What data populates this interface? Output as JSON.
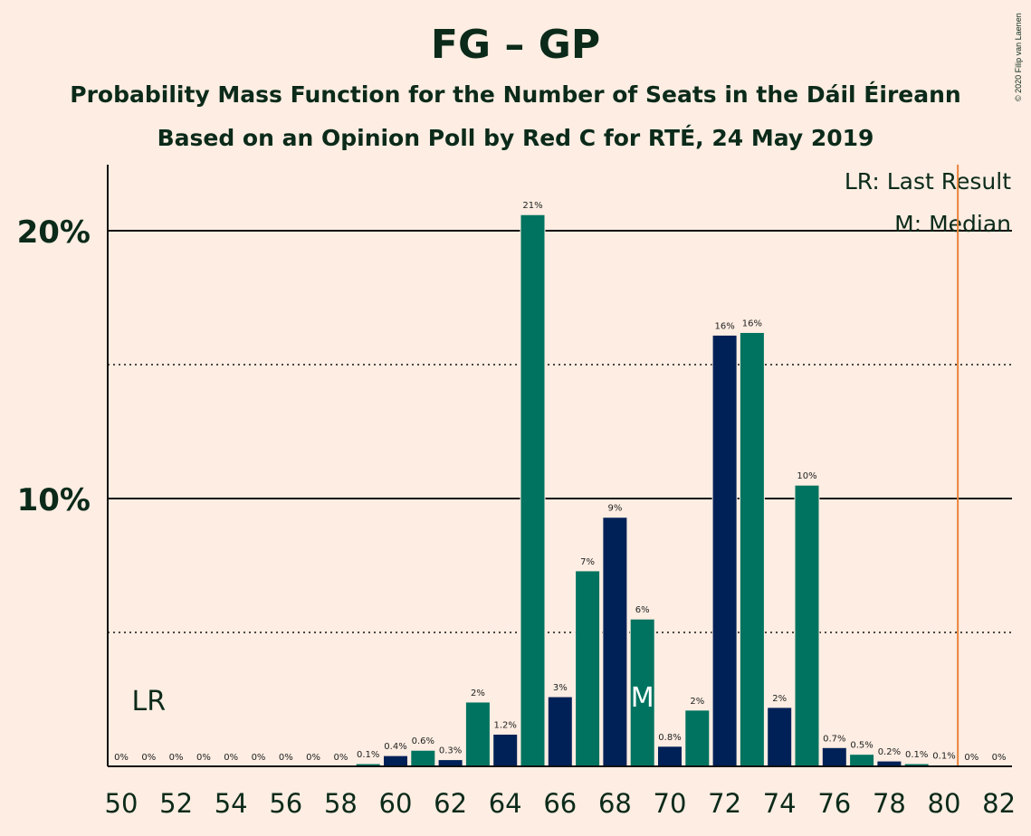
{
  "title": "FG – GP",
  "subtitle": "Probability Mass Function for the Number of Seats in the Dáil Éireann",
  "subtitle2": "Based on an Opinion Poll by Red C for RTÉ, 24 May 2019",
  "credit": "© 2020 Filip van Laenen",
  "legend": {
    "last_result": "LR: Last Result",
    "median": "M: Median"
  },
  "colors": {
    "background": "#FDEDE2",
    "bar_dark": "#002157",
    "bar_green": "#007360",
    "majority_line": "#E8833A"
  },
  "chart_data": {
    "type": "bar",
    "xlim": [
      50,
      82
    ],
    "ylim": [
      0,
      22.5
    ],
    "y_ticks": [
      {
        "value": 10,
        "label": "10%"
      },
      {
        "value": 20,
        "label": "20%"
      }
    ],
    "y_dotted": [
      5,
      15
    ],
    "x_ticks": [
      50,
      52,
      54,
      56,
      58,
      60,
      62,
      64,
      66,
      68,
      70,
      72,
      74,
      76,
      78,
      80,
      82
    ],
    "bars": [
      {
        "seats": 50,
        "value": 0,
        "label": "0%"
      },
      {
        "seats": 51,
        "value": 0,
        "label": "0%"
      },
      {
        "seats": 52,
        "value": 0,
        "label": "0%"
      },
      {
        "seats": 53,
        "value": 0,
        "label": "0%"
      },
      {
        "seats": 54,
        "value": 0,
        "label": "0%"
      },
      {
        "seats": 55,
        "value": 0,
        "label": "0%"
      },
      {
        "seats": 56,
        "value": 0,
        "label": "0%"
      },
      {
        "seats": 57,
        "value": 0,
        "label": "0%"
      },
      {
        "seats": 58,
        "value": 0,
        "label": "0%"
      },
      {
        "seats": 59,
        "value": 0.1,
        "label": "0.1%"
      },
      {
        "seats": 60,
        "value": 0.4,
        "label": "0.4%"
      },
      {
        "seats": 61,
        "value": 0.6,
        "label": "0.6%"
      },
      {
        "seats": 62,
        "value": 0.25,
        "label": "0.3%"
      },
      {
        "seats": 63,
        "value": 2.4,
        "label": "2%"
      },
      {
        "seats": 64,
        "value": 1.2,
        "label": "1.2%"
      },
      {
        "seats": 65,
        "value": 20.6,
        "label": "21%"
      },
      {
        "seats": 66,
        "value": 2.6,
        "label": "3%"
      },
      {
        "seats": 67,
        "value": 7.3,
        "label": "7%"
      },
      {
        "seats": 68,
        "value": 9.3,
        "label": "9%"
      },
      {
        "seats": 69,
        "value": 5.5,
        "label": "6%"
      },
      {
        "seats": 70,
        "value": 0.75,
        "label": "0.8%"
      },
      {
        "seats": 71,
        "value": 2.1,
        "label": "2%"
      },
      {
        "seats": 72,
        "value": 16.1,
        "label": "16%"
      },
      {
        "seats": 73,
        "value": 16.2,
        "label": "16%"
      },
      {
        "seats": 74,
        "value": 2.2,
        "label": "2%"
      },
      {
        "seats": 75,
        "value": 10.5,
        "label": "10%"
      },
      {
        "seats": 76,
        "value": 0.7,
        "label": "0.7%"
      },
      {
        "seats": 77,
        "value": 0.45,
        "label": "0.5%"
      },
      {
        "seats": 78,
        "value": 0.2,
        "label": "0.2%"
      },
      {
        "seats": 79,
        "value": 0.1,
        "label": "0.1%"
      },
      {
        "seats": 80,
        "value": 0.05,
        "label": "0.1%"
      },
      {
        "seats": 81,
        "value": 0,
        "label": "0%"
      },
      {
        "seats": 82,
        "value": 0,
        "label": "0%"
      }
    ],
    "last_result": {
      "seats": 51,
      "label": "LR"
    },
    "median": {
      "seats": 69,
      "label": "M"
    },
    "majority_seats": 80.5
  }
}
